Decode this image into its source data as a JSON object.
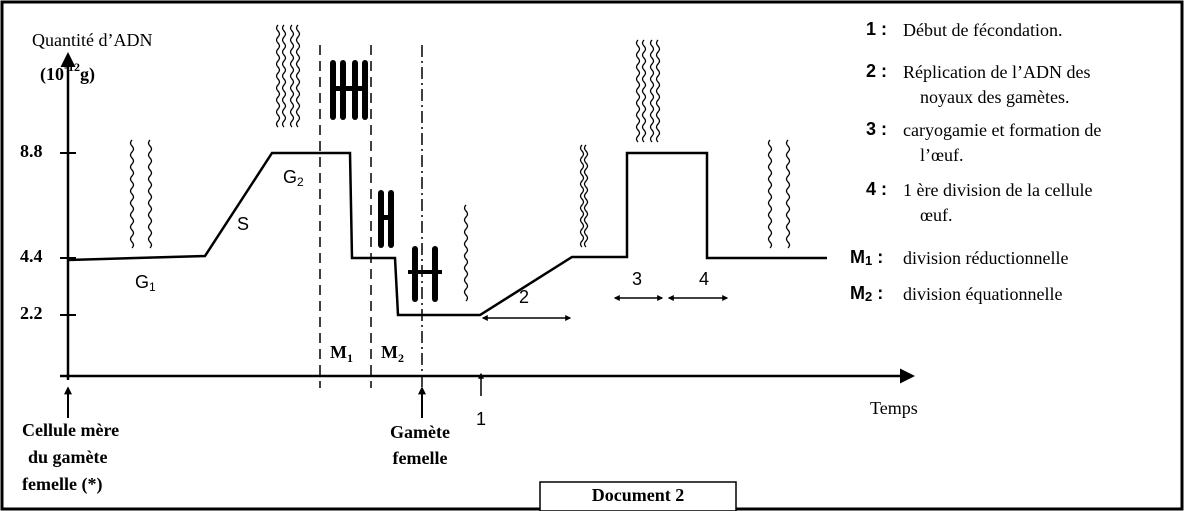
{
  "axis": {
    "y_label": "Quantité d’ADN",
    "y_unit_prefix": "(10",
    "y_unit_exponent": "-12",
    "y_unit_suffix": "g)",
    "x_label": "Temps",
    "y_ticks": [
      "8.8",
      "4.4",
      "2.2"
    ]
  },
  "phases": [
    {
      "letter": "G",
      "sub": "1"
    },
    {
      "letter": "S"
    },
    {
      "letter": "G",
      "sub": "2"
    },
    {
      "letter": "M",
      "sub": "1"
    },
    {
      "letter": "M",
      "sub": "2"
    }
  ],
  "intervals": [
    "1",
    "2",
    "3",
    "4"
  ],
  "markers": {
    "mother_cell": [
      "Cellule mère",
      "du gamète",
      "femelle (*)"
    ],
    "female_gamete": [
      "Gamète",
      "femelle"
    ]
  },
  "legend": [
    {
      "key": "1 :",
      "lines": [
        "Début de fécondation."
      ]
    },
    {
      "key": "2 :",
      "lines": [
        "Réplication de  l’ADN des",
        "noyaux des gamètes."
      ]
    },
    {
      "key": "3 :",
      "lines": [
        "caryogamie et formation de",
        "l’œuf."
      ]
    },
    {
      "key": "4 :",
      "lines": [
        "1 ère division de la cellule",
        "œuf."
      ]
    },
    {
      "key": "M",
      "key_sub": "1",
      "key_suffix": " :",
      "lines": [
        "division réductionnelle"
      ]
    },
    {
      "key": "M",
      "key_sub": "2",
      "key_suffix": " :",
      "lines": [
        "division équationnelle"
      ]
    }
  ],
  "caption": "Document 2"
}
